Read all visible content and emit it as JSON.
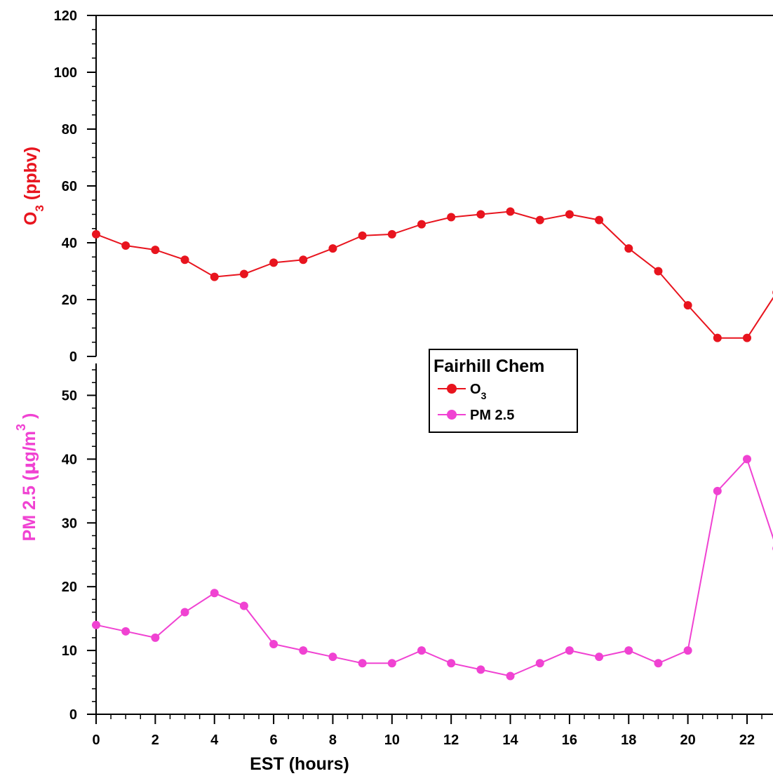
{
  "chart_data": {
    "type": "line",
    "x_label": "EST (hours)",
    "x_range": [
      0,
      23
    ],
    "x_ticks": [
      0,
      2,
      4,
      6,
      8,
      10,
      12,
      14,
      16,
      18,
      20,
      22
    ],
    "x": [
      0,
      1,
      2,
      3,
      4,
      5,
      6,
      7,
      8,
      9,
      10,
      11,
      12,
      13,
      14,
      15,
      16,
      17,
      18,
      19,
      20,
      21,
      22,
      23
    ],
    "grid": false,
    "legend": {
      "title": "Fairhill Chem",
      "placement": "center",
      "entries": [
        {
          "label_main": "O",
          "label_sub": "3",
          "color": "#e8141e"
        },
        {
          "label_main": "PM 2.5",
          "label_sub": "",
          "color": "#f042d2"
        }
      ]
    },
    "panels": [
      {
        "name": "o3",
        "position": "top",
        "color": "#e8141e",
        "y_label_main": "O",
        "y_label_sub": "3",
        "y_label_rest": " (ppbv)",
        "y_range": [
          0,
          120
        ],
        "y_ticks": [
          0,
          20,
          40,
          60,
          80,
          100,
          120
        ],
        "y_minor_step": 5,
        "values": [
          43,
          39,
          37.5,
          34,
          28,
          29,
          33,
          34,
          38,
          42.5,
          43,
          46.5,
          49,
          50,
          51,
          48,
          50,
          48,
          38,
          30,
          18,
          6.5,
          6.5,
          22.5
        ]
      },
      {
        "name": "pm25",
        "position": "bottom",
        "color": "#f042d2",
        "y_label_main": "PM 2.5 (",
        "y_label_mu": "µ",
        "y_label_rest": "g/m",
        "y_label_sup": "3",
        "y_label_close": " )",
        "y_range": [
          0,
          55
        ],
        "y_ticks": [
          0,
          10,
          20,
          30,
          40,
          50
        ],
        "y_minor_step": 2,
        "values": [
          14,
          13,
          12,
          16,
          19,
          17,
          11,
          10,
          9,
          8,
          8,
          10,
          8,
          7,
          6,
          8,
          10,
          9,
          10,
          8,
          10,
          35,
          40,
          26
        ]
      }
    ]
  }
}
